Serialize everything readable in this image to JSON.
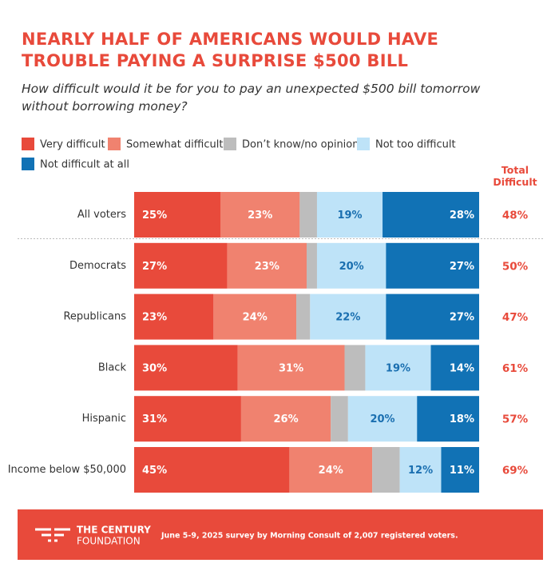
{
  "chart_data": {
    "type": "stacked-bar-horizontal",
    "title": "NEARLY HALF OF AMERICANS WOULD HAVE TROUBLE PAYING A SURPRISE $500 BILL",
    "subtitle": "How difficult would it be for you to pay an unexpected $500 bill tomorrow without borrowing money?",
    "categories": [
      "All voters",
      "Democrats",
      "Republicans",
      "Black",
      "Hispanic",
      "Income below $50,000"
    ],
    "xlim": [
      0,
      100
    ],
    "series": [
      {
        "name": "Very difficult",
        "color": "#e84a3b",
        "values": [
          25,
          27,
          23,
          30,
          31,
          45
        ],
        "value_labels": [
          "25%",
          "27%",
          "23%",
          "30%",
          "31%",
          "45%"
        ]
      },
      {
        "name": "Somewhat difficult",
        "color": "#f0826f",
        "values": [
          23,
          23,
          24,
          31,
          26,
          24
        ],
        "value_labels": [
          "23%",
          "23%",
          "24%",
          "31%",
          "26%",
          "24%"
        ]
      },
      {
        "name": "Don’t know/no opinion",
        "color": "#bdbdbd",
        "values": [
          5,
          3,
          4,
          6,
          5,
          8
        ]
      },
      {
        "name": "Not too difficult",
        "color": "#bee3f8",
        "values": [
          19,
          20,
          22,
          19,
          20,
          12
        ],
        "value_labels": [
          "19%",
          "20%",
          "22%",
          "19%",
          "20%",
          "12%"
        ]
      },
      {
        "name": "Not difficult at all",
        "color": "#1172b5",
        "values": [
          28,
          27,
          27,
          14,
          18,
          11
        ],
        "value_labels": [
          "28%",
          "27%",
          "27%",
          "14%",
          "18%",
          "11%"
        ]
      }
    ],
    "totals": {
      "label": "Total Difficult",
      "values": [
        48,
        50,
        47,
        61,
        57,
        69
      ],
      "value_labels": [
        "48%",
        "50%",
        "47%",
        "61%",
        "57%",
        "69%"
      ]
    }
  },
  "footer": {
    "logo": [
      "THE CENTURY",
      "FOUNDATION"
    ],
    "source": "June 5-9, 2025 survey by Morning Consult of 2,007 registered voters."
  }
}
